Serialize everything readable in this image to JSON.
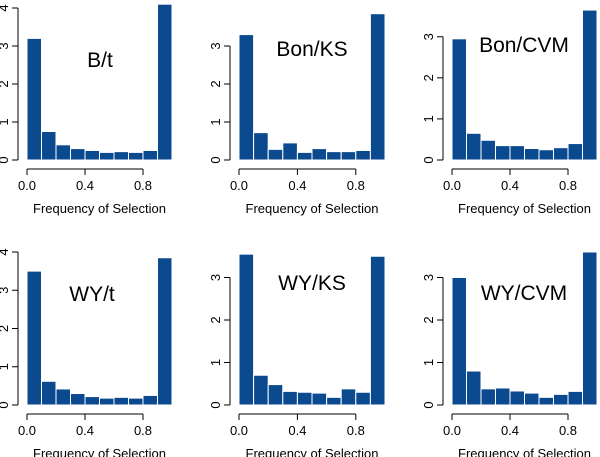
{
  "bar_color": "#0b4a8f",
  "chart_data": [
    {
      "type": "bar",
      "title": "B/t",
      "xlabel": "Frequency of Selection",
      "ylabel": "",
      "bin_edges": [
        0,
        0.1,
        0.2,
        0.3,
        0.4,
        0.5,
        0.6,
        0.7,
        0.8,
        0.9,
        1.0
      ],
      "values": [
        3.2,
        0.75,
        0.4,
        0.3,
        0.25,
        0.2,
        0.22,
        0.2,
        0.25,
        4.1
      ],
      "xlim": [
        0,
        1
      ],
      "ylim": [
        0,
        4
      ],
      "xticks": [
        0.0,
        0.4,
        0.8
      ],
      "xtick_labels": [
        "0.0",
        "0.4",
        "0.8"
      ],
      "yticks": [
        0,
        1,
        2,
        3,
        4
      ],
      "ytick_labels": [
        "0",
        "1",
        "2",
        "3",
        "4"
      ]
    },
    {
      "type": "bar",
      "title": "Bon/KS",
      "xlabel": "Frequency of Selection",
      "ylabel": "",
      "bin_edges": [
        0,
        0.1,
        0.2,
        0.3,
        0.4,
        0.5,
        0.6,
        0.7,
        0.8,
        0.9,
        1.0
      ],
      "values": [
        3.3,
        0.72,
        0.28,
        0.45,
        0.2,
        0.3,
        0.22,
        0.22,
        0.25,
        3.85
      ],
      "xlim": [
        0,
        1
      ],
      "ylim": [
        0,
        4
      ],
      "xticks": [
        0.0,
        0.4,
        0.8
      ],
      "xtick_labels": [
        "0.0",
        "0.4",
        "0.8"
      ],
      "yticks": [
        0,
        1,
        2,
        3
      ],
      "ytick_labels": [
        "0",
        "1",
        "2",
        "3"
      ]
    },
    {
      "type": "bar",
      "title": "Bon/CVM",
      "xlabel": "Frequency of Selection",
      "ylabel": "",
      "bin_edges": [
        0,
        0.1,
        0.2,
        0.3,
        0.4,
        0.5,
        0.6,
        0.7,
        0.8,
        0.9,
        1.0
      ],
      "values": [
        2.95,
        0.65,
        0.48,
        0.35,
        0.35,
        0.28,
        0.25,
        0.3,
        0.4,
        3.65
      ],
      "xlim": [
        0,
        1
      ],
      "ylim": [
        0,
        3.7
      ],
      "xticks": [
        0.0,
        0.4,
        0.8
      ],
      "xtick_labels": [
        "0.0",
        "0.4",
        "0.8"
      ],
      "yticks": [
        0,
        1,
        2,
        3
      ],
      "ytick_labels": [
        "0",
        "1",
        "2",
        "3"
      ]
    },
    {
      "type": "bar",
      "title": "WY/t",
      "xlabel": "Frequency of Selection",
      "ylabel": "",
      "bin_edges": [
        0,
        0.1,
        0.2,
        0.3,
        0.4,
        0.5,
        0.6,
        0.7,
        0.8,
        0.9,
        1.0
      ],
      "values": [
        3.5,
        0.62,
        0.42,
        0.3,
        0.22,
        0.18,
        0.2,
        0.18,
        0.25,
        3.85
      ],
      "xlim": [
        0,
        1
      ],
      "ylim": [
        0,
        4
      ],
      "xticks": [
        0.0,
        0.4,
        0.8
      ],
      "xtick_labels": [
        "0.0",
        "0.4",
        "0.8"
      ],
      "yticks": [
        0,
        1,
        2,
        3,
        4
      ],
      "ytick_labels": [
        "0",
        "1",
        "2",
        "3",
        "4"
      ]
    },
    {
      "type": "bar",
      "title": "WY/KS",
      "xlabel": "Frequency of Selection",
      "ylabel": "",
      "bin_edges": [
        0,
        0.1,
        0.2,
        0.3,
        0.4,
        0.5,
        0.6,
        0.7,
        0.8,
        0.9,
        1.0
      ],
      "values": [
        3.55,
        0.7,
        0.48,
        0.32,
        0.3,
        0.28,
        0.18,
        0.38,
        0.3,
        3.5
      ],
      "xlim": [
        0,
        1
      ],
      "ylim": [
        0,
        3.6
      ],
      "xticks": [
        0.0,
        0.4,
        0.8
      ],
      "xtick_labels": [
        "0.0",
        "0.4",
        "0.8"
      ],
      "yticks": [
        0,
        1,
        2,
        3
      ],
      "ytick_labels": [
        "0",
        "1",
        "2",
        "3"
      ]
    },
    {
      "type": "bar",
      "title": "WY/CVM",
      "xlabel": "Frequency of Selection",
      "ylabel": "",
      "bin_edges": [
        0,
        0.1,
        0.2,
        0.3,
        0.4,
        0.5,
        0.6,
        0.7,
        0.8,
        0.9,
        1.0
      ],
      "values": [
        3.0,
        0.8,
        0.38,
        0.4,
        0.33,
        0.28,
        0.18,
        0.25,
        0.32,
        3.6
      ],
      "xlim": [
        0,
        1
      ],
      "ylim": [
        0,
        3.6
      ],
      "xticks": [
        0.0,
        0.4,
        0.8
      ],
      "xtick_labels": [
        "0.0",
        "0.4",
        "0.8"
      ],
      "yticks": [
        0,
        1,
        2,
        3
      ],
      "ytick_labels": [
        "0",
        "1",
        "2",
        "3"
      ]
    }
  ]
}
